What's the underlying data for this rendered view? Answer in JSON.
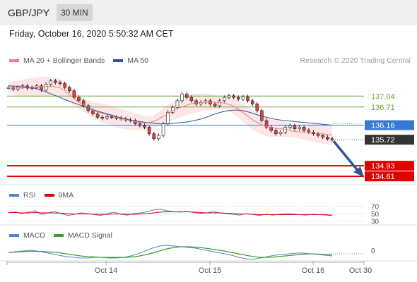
{
  "header": {
    "pair": "GBP/JPY",
    "timeframe": "30 MIN"
  },
  "datetime": "Friday, October 16, 2020 5:50:32 AM CET",
  "credit": "Research © 2020 Trading Central",
  "legends": {
    "main": [
      {
        "label": "MA 20 + Bollinger Bands",
        "color": "#f08080"
      },
      {
        "label": "MA 50",
        "color": "#2f5597"
      }
    ],
    "rsi": [
      {
        "label": "RSI",
        "color": "#5b7fd1"
      },
      {
        "label": "9MA",
        "color": "#e00000"
      }
    ],
    "macd": [
      {
        "label": "MACD",
        "color": "#5b7fd1"
      },
      {
        "label": "MACD Signal",
        "color": "#3aa02a"
      }
    ]
  },
  "price_levels": [
    {
      "label": "137.04",
      "kind": "resistance",
      "color": "#6aa63a"
    },
    {
      "label": "136.71",
      "kind": "resistance",
      "color": "#6aa63a"
    },
    {
      "label": "136.16",
      "kind": "pivot",
      "color": "#3a78d6"
    },
    {
      "label": "135.72",
      "kind": "current",
      "color": "#333333"
    },
    {
      "label": "134.93",
      "kind": "target",
      "color": "#e00000"
    },
    {
      "label": "134.61",
      "kind": "target",
      "color": "#e00000"
    }
  ],
  "rsi_levels": [
    "70",
    "50",
    "30"
  ],
  "macd_level": "0",
  "x_axis": [
    "Oct 14",
    "Oct 15",
    "Oct 16",
    "Oct 30"
  ],
  "chart_data": {
    "type": "line",
    "y_range": [
      134.4,
      137.9
    ],
    "candles": [
      137.3,
      137.25,
      137.32,
      137.35,
      137.28,
      137.3,
      137.35,
      137.22,
      137.4,
      137.5,
      137.45,
      137.42,
      137.3,
      137.2,
      137.0,
      136.9,
      136.75,
      136.6,
      136.5,
      136.4,
      136.38,
      136.42,
      136.4,
      136.38,
      136.35,
      136.32,
      136.3,
      136.2,
      136.15,
      136.1,
      135.9,
      135.75,
      135.85,
      136.2,
      136.55,
      136.7,
      136.9,
      137.1,
      137.0,
      136.9,
      136.8,
      136.85,
      136.9,
      136.8,
      136.75,
      136.9,
      137.0,
      137.05,
      137.0,
      136.95,
      137.02,
      136.9,
      136.8,
      136.6,
      136.3,
      136.1,
      136.0,
      135.9,
      135.95,
      136.1,
      136.15,
      136.05,
      136.1,
      136.0,
      135.95,
      135.9,
      135.85,
      135.8,
      135.75,
      135.72
    ],
    "ma20": [
      137.3,
      137.28,
      137.28,
      137.3,
      137.3,
      137.31,
      137.33,
      137.33,
      137.33,
      137.3,
      137.2,
      137.05,
      136.9,
      136.8,
      136.7,
      136.6,
      136.55,
      136.5,
      136.45,
      136.4,
      136.35,
      136.32,
      136.28,
      136.24,
      136.22,
      136.24,
      136.3,
      136.4,
      136.5,
      136.6,
      136.68,
      136.74,
      136.8,
      136.83,
      136.85,
      136.86,
      136.86,
      136.85,
      136.83,
      136.78,
      136.7,
      136.58,
      136.45,
      136.32,
      136.22,
      136.15,
      136.1,
      136.07,
      136.05,
      136.02,
      135.98,
      135.96,
      135.95,
      135.94,
      135.92,
      135.9,
      135.88,
      135.86
    ],
    "ma50": [
      137.35,
      137.34,
      137.32,
      137.3,
      137.27,
      137.2,
      137.12,
      137.04,
      136.95,
      136.87,
      136.8,
      136.72,
      136.65,
      136.58,
      136.52,
      136.46,
      136.4,
      136.35,
      136.3,
      136.27,
      136.24,
      136.22,
      136.2,
      136.2,
      136.22,
      136.24,
      136.26,
      136.3,
      136.35,
      136.42,
      136.5,
      136.56,
      136.6,
      136.62,
      136.6,
      136.55,
      136.48,
      136.42,
      136.37,
      136.33,
      136.3,
      136.28,
      136.26,
      136.24,
      136.22,
      136.2,
      136.18,
      136.16
    ],
    "rsi": [
      52,
      55,
      50,
      54,
      58,
      48,
      52,
      56,
      50,
      45,
      48,
      52,
      50,
      47,
      45,
      50,
      54,
      48,
      46,
      50,
      52,
      55,
      60,
      62,
      58,
      55,
      54,
      56,
      53,
      50,
      52,
      55,
      52,
      50,
      48,
      46,
      50,
      47,
      45,
      48,
      46,
      48,
      50,
      49,
      47,
      46,
      48,
      47,
      46,
      45
    ],
    "rsi_ma": [
      53,
      53,
      52,
      52,
      53,
      52,
      52,
      52,
      51,
      50,
      49,
      49,
      49,
      48,
      48,
      48,
      49,
      49,
      48,
      48,
      49,
      50,
      52,
      54,
      55,
      55,
      55,
      55,
      54,
      53,
      52,
      52,
      52,
      51,
      50,
      49,
      49,
      48,
      47,
      47,
      47,
      47,
      47,
      47,
      47,
      47,
      47,
      47,
      47,
      46
    ],
    "macd": [
      0.02,
      0.03,
      0.04,
      0.05,
      0.04,
      0.02,
      0.0,
      -0.02,
      -0.04,
      -0.05,
      -0.06,
      -0.06,
      -0.05,
      -0.05,
      -0.06,
      -0.06,
      -0.05,
      -0.03,
      0.0,
      0.04,
      0.08,
      0.11,
      0.12,
      0.11,
      0.1,
      0.09,
      0.08,
      0.06,
      0.04,
      0.02,
      0.0,
      -0.02,
      -0.05,
      -0.07,
      -0.08,
      -0.06,
      -0.04,
      -0.02,
      -0.01,
      0.0,
      0.01,
      0.01,
      0.0,
      -0.01,
      -0.02,
      -0.03
    ],
    "macd_signal": [
      0.02,
      0.025,
      0.03,
      0.035,
      0.035,
      0.03,
      0.025,
      0.015,
      0.0,
      -0.015,
      -0.03,
      -0.04,
      -0.045,
      -0.05,
      -0.05,
      -0.05,
      -0.05,
      -0.045,
      -0.035,
      -0.015,
      0.01,
      0.04,
      0.07,
      0.09,
      0.1,
      0.1,
      0.095,
      0.085,
      0.07,
      0.055,
      0.04,
      0.02,
      0.0,
      -0.02,
      -0.04,
      -0.05,
      -0.05,
      -0.045,
      -0.035,
      -0.025,
      -0.015,
      -0.005,
      0.0,
      -0.005,
      -0.01,
      -0.015
    ]
  }
}
